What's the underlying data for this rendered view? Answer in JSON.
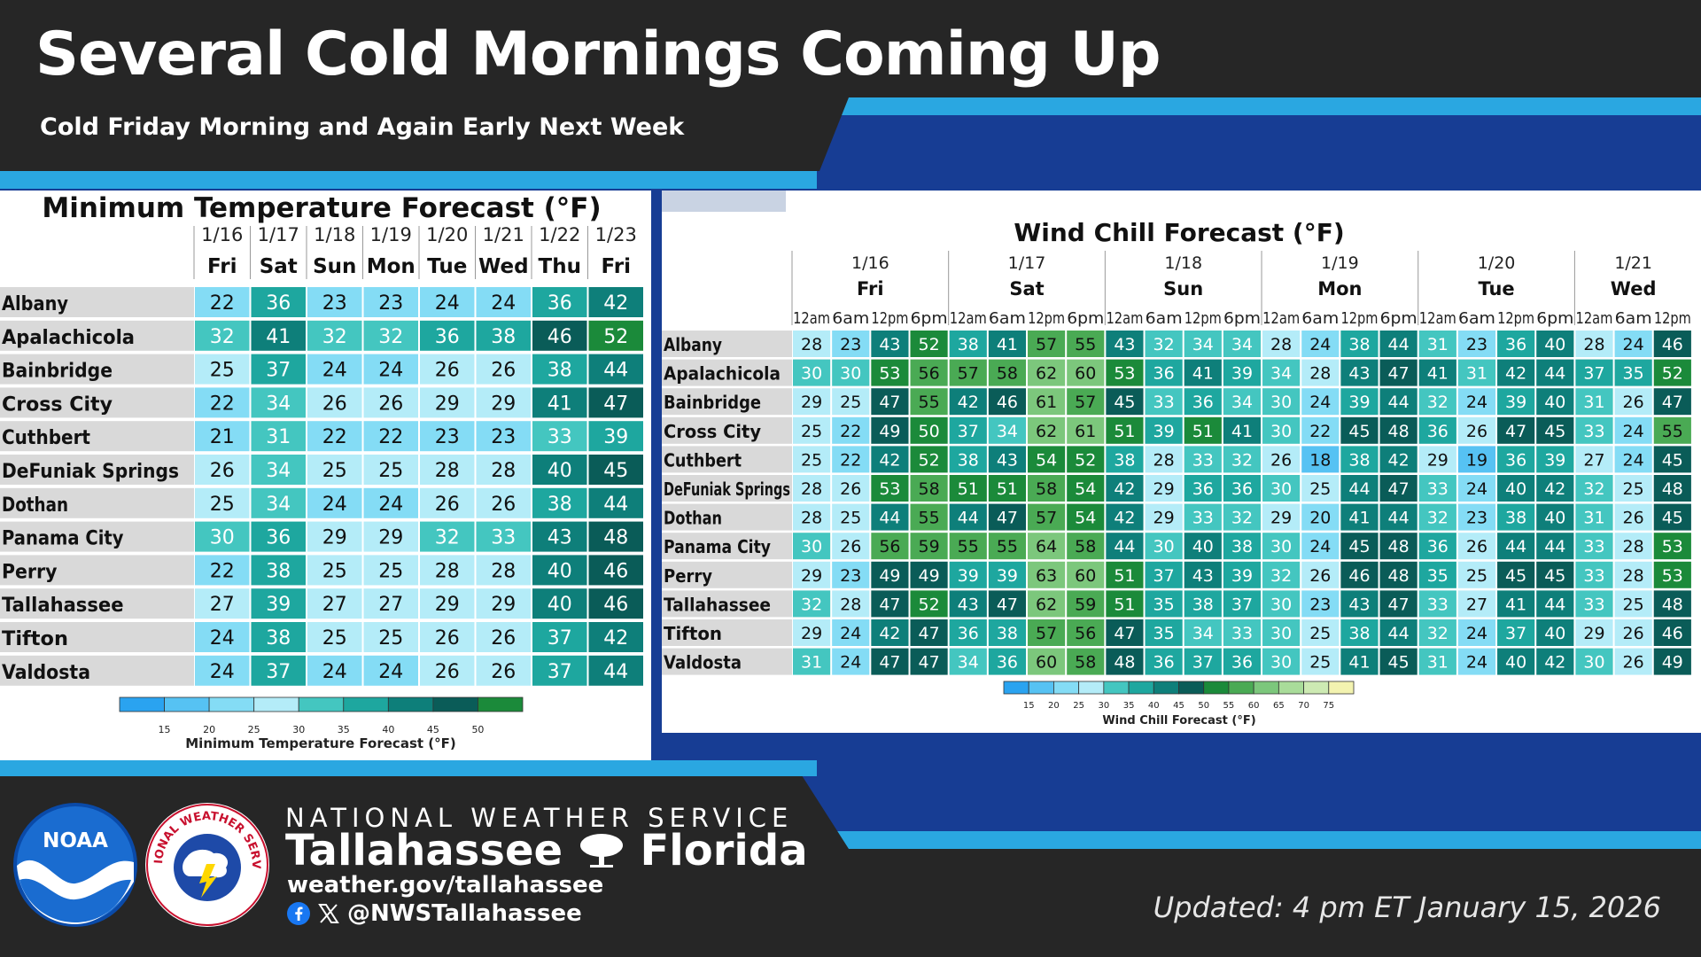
{
  "header": {
    "title": "Several Cold Mornings Coming Up",
    "subtitle": "Cold Friday Morning and Again Early Next Week"
  },
  "footer": {
    "agency": "NATIONAL WEATHER SERVICE",
    "office_city": "Tallahassee",
    "office_state": "Florida",
    "url": "weather.gov/tallahassee",
    "social_handle": "@NWSTallahassee",
    "updated": "Updated: 4 pm ET January 15, 2026",
    "noaa_logo_text": "NOAA",
    "nws_seal_text": "NATIONAL WEATHER SERVICE"
  },
  "colors": {
    "accent_blue": "#2aa7e1",
    "navy": "#173d94",
    "dark": "#262626",
    "scale": [
      "#2aa3f0",
      "#56c2f3",
      "#84dcf5",
      "#b4ecf8",
      "#44c6c0",
      "#1ea79f",
      "#0e7f7a",
      "#0a5c58",
      "#1b8a3a",
      "#4aaa54",
      "#7cc77c",
      "#a9dc9a",
      "#cdeab3",
      "#f3f3b0"
    ],
    "scale_bounds": [
      15,
      20,
      25,
      30,
      35,
      40,
      45,
      50,
      55,
      60,
      65,
      70,
      75
    ]
  },
  "chart_data": [
    {
      "type": "table",
      "title": "Minimum Temperature Forecast (°F)",
      "dates": [
        "1/16",
        "1/17",
        "1/18",
        "1/19",
        "1/20",
        "1/21",
        "1/22",
        "1/23"
      ],
      "days": [
        "Fri",
        "Sat",
        "Sun",
        "Mon",
        "Tue",
        "Wed",
        "Thu",
        "Fri"
      ],
      "rows": [
        {
          "name": "Albany",
          "values": [
            22,
            36,
            23,
            23,
            24,
            24,
            36,
            42
          ]
        },
        {
          "name": "Apalachicola",
          "values": [
            32,
            41,
            32,
            32,
            36,
            38,
            46,
            52
          ]
        },
        {
          "name": "Bainbridge",
          "values": [
            25,
            37,
            24,
            24,
            26,
            26,
            38,
            44
          ]
        },
        {
          "name": "Cross City",
          "values": [
            22,
            34,
            26,
            26,
            29,
            29,
            41,
            47
          ]
        },
        {
          "name": "Cuthbert",
          "values": [
            21,
            31,
            22,
            22,
            23,
            23,
            33,
            39
          ]
        },
        {
          "name": "DeFuniak Springs",
          "values": [
            26,
            34,
            25,
            25,
            28,
            28,
            40,
            45
          ]
        },
        {
          "name": "Dothan",
          "values": [
            25,
            34,
            24,
            24,
            26,
            26,
            38,
            44
          ]
        },
        {
          "name": "Panama City",
          "values": [
            30,
            36,
            29,
            29,
            32,
            33,
            43,
            48
          ]
        },
        {
          "name": "Perry",
          "values": [
            22,
            38,
            25,
            25,
            28,
            28,
            40,
            46
          ]
        },
        {
          "name": "Tallahassee",
          "values": [
            27,
            39,
            27,
            27,
            29,
            29,
            40,
            46
          ]
        },
        {
          "name": "Tifton",
          "values": [
            24,
            38,
            25,
            25,
            26,
            26,
            37,
            42
          ]
        },
        {
          "name": "Valdosta",
          "values": [
            24,
            37,
            24,
            24,
            26,
            26,
            37,
            44
          ]
        }
      ],
      "colorbar": {
        "ticks": [
          15,
          20,
          25,
          30,
          35,
          40,
          45,
          50
        ],
        "label": "Minimum Temperature Forecast (°F)"
      }
    },
    {
      "type": "table",
      "title": "Wind Chill Forecast (°F)",
      "dates": [
        "1/16",
        "1/17",
        "1/18",
        "1/19",
        "1/20",
        "1/21"
      ],
      "days": [
        "Fri",
        "Sat",
        "Sun",
        "Mon",
        "Tue",
        "Wed"
      ],
      "hours": [
        "12am",
        "6am",
        "12pm",
        "6pm"
      ],
      "rows": [
        {
          "name": "Albany",
          "values": [
            28,
            23,
            43,
            52,
            38,
            41,
            57,
            55,
            43,
            32,
            34,
            34,
            28,
            24,
            38,
            44,
            31,
            23,
            36,
            40,
            28,
            24,
            46
          ]
        },
        {
          "name": "Apalachicola",
          "values": [
            30,
            30,
            53,
            56,
            57,
            58,
            62,
            60,
            53,
            36,
            41,
            39,
            34,
            28,
            43,
            47,
            41,
            31,
            42,
            44,
            37,
            35,
            52
          ]
        },
        {
          "name": "Bainbridge",
          "values": [
            29,
            25,
            47,
            55,
            42,
            46,
            61,
            57,
            45,
            33,
            36,
            34,
            30,
            24,
            39,
            44,
            32,
            24,
            39,
            40,
            31,
            26,
            47
          ]
        },
        {
          "name": "Cross City",
          "values": [
            25,
            22,
            49,
            50,
            37,
            34,
            62,
            61,
            51,
            39,
            51,
            41,
            30,
            22,
            45,
            48,
            36,
            26,
            47,
            45,
            33,
            24,
            55
          ]
        },
        {
          "name": "Cuthbert",
          "values": [
            25,
            22,
            42,
            52,
            38,
            43,
            54,
            52,
            38,
            28,
            33,
            32,
            26,
            18,
            38,
            42,
            29,
            19,
            36,
            39,
            27,
            24,
            45
          ]
        },
        {
          "name": "DeFuniak Springs",
          "values": [
            28,
            26,
            53,
            58,
            51,
            51,
            58,
            54,
            42,
            29,
            36,
            36,
            30,
            25,
            44,
            47,
            33,
            24,
            40,
            42,
            32,
            25,
            48
          ]
        },
        {
          "name": "Dothan",
          "values": [
            28,
            25,
            44,
            55,
            44,
            47,
            57,
            54,
            42,
            29,
            33,
            32,
            29,
            20,
            41,
            44,
            32,
            23,
            38,
            40,
            31,
            26,
            45
          ]
        },
        {
          "name": "Panama City",
          "values": [
            30,
            26,
            56,
            59,
            55,
            55,
            64,
            58,
            44,
            30,
            40,
            38,
            30,
            24,
            45,
            48,
            36,
            26,
            44,
            44,
            33,
            28,
            53
          ]
        },
        {
          "name": "Perry",
          "values": [
            29,
            23,
            49,
            49,
            39,
            39,
            63,
            60,
            51,
            37,
            43,
            39,
            32,
            26,
            46,
            48,
            35,
            25,
            45,
            45,
            33,
            28,
            53
          ]
        },
        {
          "name": "Tallahassee",
          "values": [
            32,
            28,
            47,
            52,
            43,
            47,
            62,
            59,
            51,
            35,
            38,
            37,
            30,
            23,
            43,
            47,
            33,
            27,
            41,
            44,
            33,
            25,
            48
          ]
        },
        {
          "name": "Tifton",
          "values": [
            29,
            24,
            42,
            47,
            36,
            38,
            57,
            56,
            47,
            35,
            34,
            33,
            30,
            25,
            38,
            44,
            32,
            24,
            37,
            40,
            29,
            26,
            46
          ]
        },
        {
          "name": "Valdosta",
          "values": [
            31,
            24,
            47,
            47,
            34,
            36,
            60,
            58,
            48,
            36,
            37,
            36,
            30,
            25,
            41,
            45,
            31,
            24,
            40,
            42,
            30,
            26,
            49
          ]
        }
      ],
      "colorbar": {
        "ticks": [
          15,
          20,
          25,
          30,
          35,
          40,
          45,
          50,
          55,
          60,
          65,
          70,
          75
        ],
        "label": "Wind Chill Forecast (°F)"
      }
    }
  ]
}
